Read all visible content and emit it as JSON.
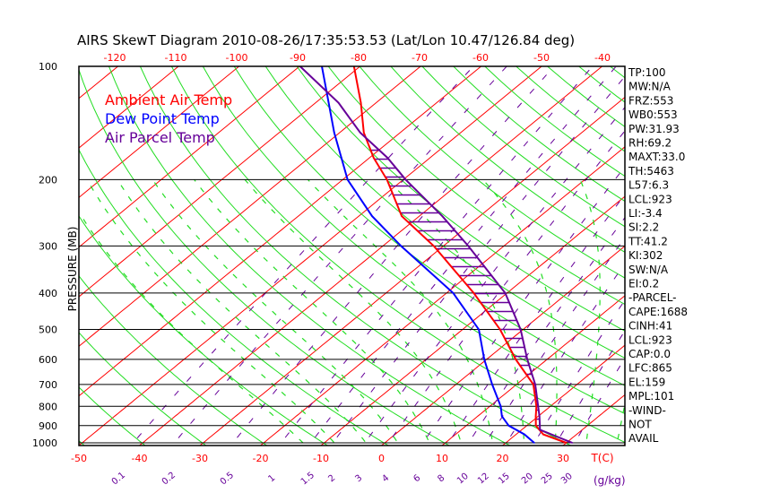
{
  "chart_data": {
    "type": "line",
    "subtype": "skew-t log-p",
    "title": "AIRS SkewT Diagram 2010-08-26/17:35:53.53 (Lat/Lon 10.47/126.84 deg)",
    "ylabel": "PRESSURE (MB)",
    "xlabel": "T(C)",
    "mixing_ratio_label": "(g/kg)",
    "pressure_ticks": [
      100,
      200,
      300,
      400,
      500,
      600,
      700,
      800,
      900,
      1000
    ],
    "bottom_temp_ticks": [
      -50,
      -40,
      -30,
      -20,
      -10,
      0,
      10,
      20,
      30
    ],
    "top_temp_ticks": [
      -120,
      -110,
      -100,
      -90,
      -80,
      -70,
      -60,
      -50,
      -40
    ],
    "mixing_ratio_ticks": [
      "0.1",
      "0.2",
      "0.5",
      "1",
      "1.5",
      "2",
      "3",
      "4",
      "6",
      "8",
      "10",
      "12",
      "15",
      "20",
      "25",
      "30"
    ],
    "ylim": [
      1050,
      100
    ],
    "xlim_bottom": [
      -50,
      40
    ],
    "legend": [
      {
        "label": "Ambient Air Temp",
        "color": "#ff0000"
      },
      {
        "label": "Dew Point Temp",
        "color": "#0000ff"
      },
      {
        "label": "Air Parcel Temp",
        "color": "#660099"
      }
    ],
    "series": [
      {
        "name": "Ambient Air Temp",
        "color": "#ff0000",
        "p": [
          1000,
          950,
          900,
          850,
          800,
          700,
          600,
          500,
          400,
          300,
          250,
          200,
          175,
          150,
          125,
          100
        ],
        "t": [
          30.0,
          24.5,
          21.5,
          19.6,
          17.7,
          12.8,
          4.8,
          -3.8,
          -15.5,
          -31.6,
          -42.9,
          -52.7,
          -59.3,
          -66.0,
          -72.5,
          -81.0
        ]
      },
      {
        "name": "Dew Point Temp",
        "color": "#0000ff",
        "p": [
          1000,
          950,
          900,
          850,
          800,
          700,
          600,
          500,
          400,
          300,
          250,
          200,
          150,
          100
        ],
        "t": [
          24.7,
          21.4,
          17.0,
          14.0,
          11.8,
          6.0,
          -0.4,
          -7.3,
          -18.9,
          -37.0,
          -47.8,
          -59.2,
          -70.9,
          -86.3
        ]
      },
      {
        "name": "Air Parcel Temp",
        "color": "#660099",
        "p": [
          1000,
          923,
          850,
          700,
          600,
          500,
          400,
          300,
          250,
          200,
          175,
          150,
          125,
          100
        ],
        "t": [
          31.0,
          23.0,
          20.2,
          13.1,
          6.7,
          -0.4,
          -10.3,
          -25.9,
          -36.2,
          -49.6,
          -57.0,
          -66.6,
          -76.2,
          -89.9
        ]
      }
    ],
    "grid": true
  },
  "stats": [
    "TP:100",
    "MW:N/A",
    "FRZ:553",
    "WB0:553",
    "PW:31.93",
    "RH:69.2",
    "MAXT:33.0",
    "TH:5463",
    "L57:6.3",
    "LCL:923",
    "LI:-3.4",
    "SI:2.2",
    "TT:41.2",
    "KI:302",
    "SW:N/A",
    "EI:0.2",
    "-PARCEL-",
    "CAPE:1688",
    "CINH:41",
    "LCL:923",
    "CAP:0.0",
    "LFC:865",
    "EL:159",
    "MPL:101",
    "-WIND-",
    "NOT",
    "AVAIL"
  ],
  "parcel_levels": {
    "lfc": 865,
    "el": 159
  }
}
